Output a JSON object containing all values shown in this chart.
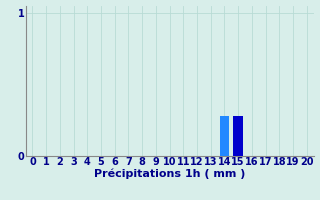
{
  "hours": [
    0,
    1,
    2,
    3,
    4,
    5,
    6,
    7,
    8,
    9,
    10,
    11,
    12,
    13,
    14,
    15,
    16,
    17,
    18,
    19,
    20
  ],
  "values": [
    0,
    0,
    0,
    0,
    0,
    0,
    0,
    0,
    0,
    0,
    0,
    0,
    0,
    0,
    0.28,
    0.28,
    0,
    0,
    0,
    0,
    0
  ],
  "bar_colors_map": {
    "14": "#2288ff",
    "15": "#0000cc"
  },
  "default_bar_color": "#0000cc",
  "xlabel": "Précipitations 1h ( mm )",
  "xlim": [
    -0.5,
    20.5
  ],
  "ylim": [
    0,
    1.05
  ],
  "ytick_positions": [
    0,
    1
  ],
  "ytick_labels": [
    "0",
    "1"
  ],
  "background_color": "#d8eeea",
  "grid_color": "#b8dbd5",
  "axis_color": "#888888",
  "label_color": "#00008b",
  "xlabel_fontsize": 8,
  "tick_fontsize": 7,
  "bar_width": 0.7
}
